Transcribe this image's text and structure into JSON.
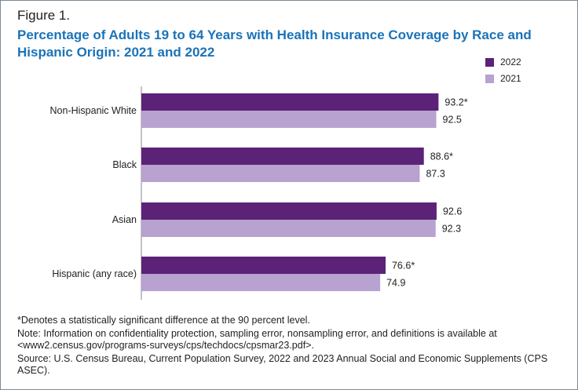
{
  "figure": {
    "label": "Figure 1.",
    "title": "Percentage of Adults 19 to 64 Years with Health Insurance Coverage by Race and Hispanic Origin: 2021 and 2022"
  },
  "colors": {
    "series_2022": "#5c2278",
    "series_2021": "#b8a2cf",
    "title": "#1a73b8",
    "axis": "#888888"
  },
  "chart_data": {
    "type": "bar",
    "orientation": "horizontal",
    "title": "Percentage of Adults 19 to 64 Years with Health Insurance Coverage by Race and Hispanic Origin: 2021 and 2022",
    "xlabel": "",
    "ylabel": "",
    "xlim": [
      0,
      100
    ],
    "grid": false,
    "legend_position": "top-right",
    "categories": [
      "Non-Hispanic White",
      "Black",
      "Asian",
      "Hispanic (any race)"
    ],
    "series": [
      {
        "name": "2022",
        "color": "#5c2278",
        "values": [
          93.2,
          88.6,
          92.6,
          76.6
        ],
        "labels": [
          "93.2*",
          "88.6*",
          "92.6",
          "76.6*"
        ]
      },
      {
        "name": "2021",
        "color": "#b8a2cf",
        "values": [
          92.5,
          87.3,
          92.3,
          74.9
        ],
        "labels": [
          "92.5",
          "87.3",
          "92.3",
          "74.9"
        ]
      }
    ]
  },
  "notes": {
    "significance": "*Denotes a statistically significant difference at the 90 percent level.",
    "note": "Note: Information on confidentiality protection, sampling error, nonsampling error, and definitions is available at <www2.census.gov/programs-surveys/cps/techdocs/cpsmar23.pdf>.",
    "source": "Source: U.S. Census Bureau, Current Population Survey, 2022 and 2023 Annual Social and Economic Supplements (CPS ASEC)."
  }
}
